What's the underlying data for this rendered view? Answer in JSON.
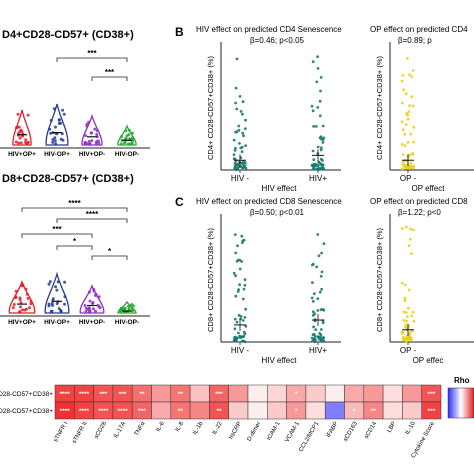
{
  "chart_data": [
    {
      "type": "violin",
      "title": "D4+CD28-CD57+ (CD38+)",
      "categories": [
        "HIV+OP+",
        "HIV-OP+",
        "HIV+OP-",
        "HIV-OP-"
      ],
      "colors": [
        "#e21d28",
        "#283891",
        "#8e2ec4",
        "#26a92f"
      ],
      "significance": [
        "***",
        "***"
      ],
      "ylabel": "",
      "ylim": [
        0,
        80
      ]
    },
    {
      "type": "violin",
      "title": "D8+CD28-CD57+ (CD38+)",
      "categories": [
        "HIV+OP+",
        "HIV-OP+",
        "HIV+OP-",
        "HIV-OP-"
      ],
      "colors": [
        "#e21d28",
        "#283891",
        "#8e2ec4",
        "#26a92f"
      ],
      "significance": [
        "****",
        "****",
        "***",
        "*",
        "*"
      ],
      "ylabel": "",
      "ylim": [
        0,
        80
      ]
    },
    {
      "type": "scatter",
      "panel": "B",
      "title": "HIV effect on predicted CD4 Senescence",
      "stat": "β=0.46; p<0.05",
      "ylabel": "CD4+ CD28-CD57+CD38+ (%)",
      "xlabel": "HIV effect",
      "categories": [
        "HIV -",
        "HIV+"
      ],
      "color": "#1a7a6e",
      "median": [
        8,
        12
      ],
      "ylim": [
        0,
        100
      ]
    },
    {
      "type": "scatter",
      "panel": "B",
      "title": "OP effect on predicted CD4",
      "stat": "β=0.89; p",
      "ylabel": "CD4+ CD28-CD57+CD38+ (%)",
      "xlabel": "OP effect",
      "categories": [
        "OP -"
      ],
      "color": "#e8d21a",
      "median": [
        8
      ],
      "ylim": [
        0,
        100
      ]
    },
    {
      "type": "scatter",
      "panel": "C",
      "title": "HIV effect on predicted CD8 Senescence",
      "stat": "β=0.50; p<0.01",
      "ylabel": "CD8+ CD28-CD57+CD38+ (%)",
      "xlabel": "HIV effect",
      "categories": [
        "HIV -",
        "HIV+"
      ],
      "color": "#1a7a6e",
      "median": [
        14,
        18
      ],
      "ylim": [
        0,
        100
      ]
    },
    {
      "type": "scatter",
      "panel": "C",
      "title": "OP effect on predicted CD8",
      "stat": "β=1.22; p<0",
      "ylabel": "CD8+ CD28-CD57+CD38+ (%)",
      "xlabel": "OP effec",
      "categories": [
        "OP -"
      ],
      "color": "#e8d21a",
      "median": [
        10
      ],
      "ylim": [
        0,
        100
      ]
    },
    {
      "type": "heatmap",
      "rows": [
        "D28-CD57+CD38+",
        "D28-CD57+CD38+"
      ],
      "columns": [
        "sTNFR I",
        "sTNFR II",
        "sCD28",
        "IL-17A",
        "TNFα",
        "IL-6",
        "IL-8",
        "IL-1b",
        "IL-22",
        "hsCRP",
        "D-dimer",
        "ICAM-1",
        "VCAM-1",
        "CCL2/MCP1",
        "IFABP",
        "sCD163",
        "sCD14",
        "LBP",
        "IL-10",
        "Cytokine Score"
      ],
      "values": [
        [
          0.55,
          0.55,
          0.5,
          0.5,
          0.42,
          0.3,
          0.4,
          0.18,
          0.45,
          0.3,
          0.05,
          0.12,
          0.25,
          0.15,
          0.05,
          0.25,
          0.3,
          0.1,
          0.3,
          0.5
        ],
        [
          0.6,
          0.55,
          0.5,
          0.5,
          0.45,
          0.25,
          0.4,
          0.35,
          0.5,
          0.15,
          0.05,
          0.15,
          0.3,
          0.1,
          -0.4,
          0.2,
          0.35,
          0.1,
          0.15,
          0.55
        ]
      ],
      "annotations": [
        [
          "****",
          "****",
          "***",
          "***",
          "**",
          "",
          "**",
          "",
          "***",
          "",
          "",
          "",
          "*",
          "",
          "",
          "",
          "",
          "",
          "",
          "***"
        ],
        [
          "****",
          "****",
          "****",
          "****",
          "***",
          "",
          "**",
          "",
          "**",
          "",
          "",
          "",
          "*",
          "",
          "",
          "*",
          "**",
          "",
          "",
          "***"
        ]
      ],
      "legend_title": "Rho",
      "scale": [
        -1,
        1
      ]
    }
  ],
  "labels": {
    "panel_b": "B",
    "panel_c": "C"
  }
}
